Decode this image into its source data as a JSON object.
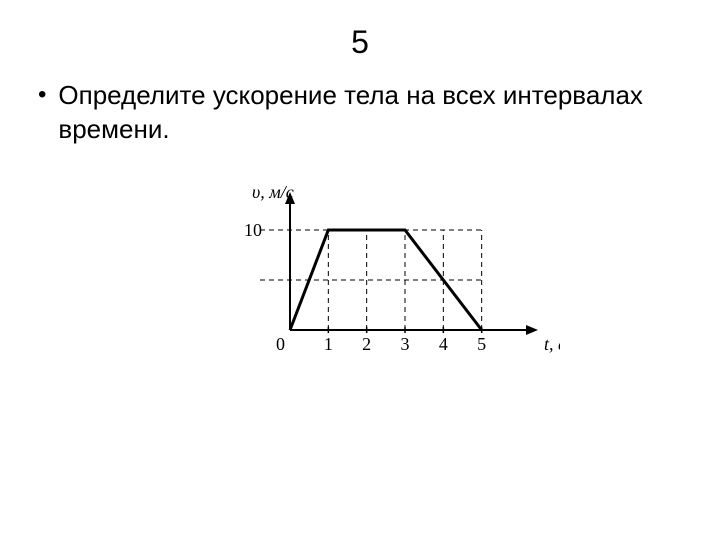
{
  "title": "5",
  "bullet": "Определите ускорение тела на всех интервалах времени.",
  "chart": {
    "type": "line",
    "y_axis_label": "υ, м/с",
    "x_axis_label": "t, с",
    "origin_label": "0",
    "y_tick_label": "10",
    "x_tick_labels": [
      "1",
      "2",
      "3",
      "4",
      "5"
    ],
    "x_range": [
      0,
      6
    ],
    "y_range": [
      0,
      12
    ],
    "x_ticks": [
      1,
      2,
      3,
      4,
      5
    ],
    "y_major": 10,
    "y_minor": 5,
    "data_points": [
      [
        0,
        0
      ],
      [
        1,
        10
      ],
      [
        3,
        10
      ],
      [
        5,
        0
      ]
    ],
    "colors": {
      "axis": "#000000",
      "grid_dash": "#000000",
      "data_line": "#000000",
      "background": "#ffffff",
      "text": "#000000"
    },
    "line_width_data": 3,
    "line_width_axis": 2,
    "font_size_labels": 18,
    "font_family": "Times New Roman, serif"
  }
}
